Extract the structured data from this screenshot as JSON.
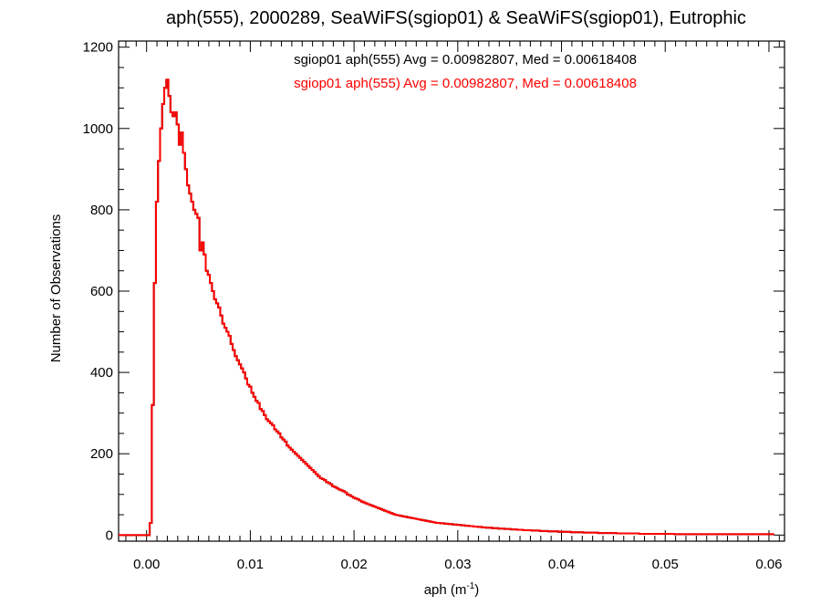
{
  "chart_data": {
    "type": "line",
    "title": "aph(555), 2000289, SeaWiFS(sgiop01) & SeaWiFS(sgiop01), Eutrophic",
    "xlabel": "aph (m",
    "xlabel_sup": "-1",
    "xlabel_end": ")",
    "ylabel": "Number of Observations",
    "xlim": [
      -0.0027,
      0.0615
    ],
    "ylim": [
      -15,
      1215
    ],
    "x_ticks": [
      0.0,
      0.01,
      0.02,
      0.03,
      0.04,
      0.05,
      0.06
    ],
    "x_tick_labels": [
      "0.00",
      "0.01",
      "0.02",
      "0.03",
      "0.04",
      "0.05",
      "0.06"
    ],
    "y_ticks": [
      0,
      200,
      400,
      600,
      800,
      1000,
      1200
    ],
    "y_tick_labels": [
      "0",
      "200",
      "400",
      "600",
      "800",
      "1000",
      "1200"
    ],
    "grid": false,
    "bin_width": 0.0002,
    "bin_start": -0.0027,
    "series": [
      {
        "name": "",
        "color": "#000000",
        "values": [
          0,
          0,
          0,
          0,
          0,
          0,
          0,
          0,
          0,
          0,
          0,
          0,
          0,
          0,
          0,
          30,
          320,
          620,
          820,
          920,
          1000,
          1060,
          1100,
          1120,
          1080,
          1040,
          1030,
          1040,
          1010,
          960,
          990,
          940,
          900,
          860,
          840,
          820,
          800,
          790,
          780,
          700,
          720,
          690,
          650,
          640,
          620,
          600,
          580,
          570,
          560,
          540,
          520,
          510,
          500,
          490,
          470,
          455,
          440,
          430,
          420,
          410,
          400,
          385,
          370,
          365,
          350,
          340,
          330,
          325,
          310,
          305,
          295,
          285,
          280,
          275,
          270,
          260,
          255,
          250,
          240,
          235,
          230,
          220,
          215,
          210,
          205,
          200,
          195,
          190,
          185,
          180,
          175,
          170,
          165,
          160,
          155,
          150,
          145,
          140,
          138,
          135,
          130,
          128,
          125,
          120,
          118,
          115,
          112,
          110,
          108,
          105,
          100,
          98,
          95,
          92,
          90,
          88,
          85,
          82,
          80,
          78,
          76,
          74,
          72,
          70,
          68,
          66,
          64,
          62,
          60,
          58,
          56,
          54,
          52,
          50,
          49,
          48,
          47,
          46,
          45,
          44,
          43,
          42,
          41,
          40,
          39,
          38,
          37,
          36,
          35,
          34,
          33,
          32,
          31,
          30,
          30,
          29,
          29,
          28,
          28,
          27,
          27,
          26,
          26,
          25,
          25,
          24,
          24,
          23,
          23,
          22,
          22,
          21,
          21,
          20,
          20,
          19,
          19,
          18,
          18,
          18,
          17,
          17,
          17,
          16,
          16,
          16,
          15,
          15,
          15,
          14,
          14,
          14,
          13,
          13,
          13,
          12,
          12,
          12,
          12,
          11,
          11,
          11,
          11,
          10,
          10,
          10,
          10,
          9,
          9,
          9,
          9,
          9,
          8,
          8,
          8,
          8,
          8,
          8,
          7,
          7,
          7,
          7,
          7,
          7,
          6,
          6,
          6,
          6,
          6,
          6,
          6,
          5,
          5,
          5,
          5,
          5,
          5,
          5,
          5,
          5,
          4,
          4,
          4,
          4,
          4,
          4,
          4,
          4,
          4,
          4,
          4,
          3,
          3,
          3,
          3,
          3,
          3,
          3,
          3,
          3,
          3,
          3,
          3,
          3,
          3,
          3,
          3,
          3,
          2,
          2,
          2,
          2,
          2,
          2,
          2,
          2,
          2,
          2,
          2,
          2,
          2,
          2,
          2,
          2,
          2,
          2,
          2,
          2,
          2,
          2,
          2,
          2,
          2,
          2,
          2,
          2,
          2,
          2,
          2,
          2,
          2,
          2,
          2,
          2,
          2,
          2,
          2,
          2,
          2,
          2,
          2,
          2,
          2,
          2,
          2,
          2
        ]
      },
      {
        "name": "",
        "color": "#ff0000",
        "values": [
          0,
          0,
          0,
          0,
          0,
          0,
          0,
          0,
          0,
          0,
          0,
          0,
          0,
          0,
          0,
          30,
          320,
          620,
          820,
          920,
          1000,
          1060,
          1100,
          1120,
          1080,
          1040,
          1030,
          1040,
          1010,
          960,
          990,
          940,
          900,
          860,
          840,
          820,
          800,
          790,
          780,
          700,
          720,
          690,
          650,
          640,
          620,
          600,
          580,
          570,
          560,
          540,
          520,
          510,
          500,
          490,
          470,
          455,
          440,
          430,
          420,
          410,
          400,
          385,
          370,
          365,
          350,
          340,
          330,
          325,
          310,
          305,
          295,
          285,
          280,
          275,
          270,
          260,
          255,
          250,
          240,
          235,
          230,
          220,
          215,
          210,
          205,
          200,
          195,
          190,
          185,
          180,
          175,
          170,
          165,
          160,
          155,
          150,
          145,
          140,
          138,
          135,
          130,
          128,
          125,
          120,
          118,
          115,
          112,
          110,
          108,
          105,
          100,
          98,
          95,
          92,
          90,
          88,
          85,
          82,
          80,
          78,
          76,
          74,
          72,
          70,
          68,
          66,
          64,
          62,
          60,
          58,
          56,
          54,
          52,
          50,
          49,
          48,
          47,
          46,
          45,
          44,
          43,
          42,
          41,
          40,
          39,
          38,
          37,
          36,
          35,
          34,
          33,
          32,
          31,
          30,
          30,
          29,
          29,
          28,
          28,
          27,
          27,
          26,
          26,
          25,
          25,
          24,
          24,
          23,
          23,
          22,
          22,
          21,
          21,
          20,
          20,
          19,
          19,
          18,
          18,
          18,
          17,
          17,
          17,
          16,
          16,
          16,
          15,
          15,
          15,
          14,
          14,
          14,
          13,
          13,
          13,
          12,
          12,
          12,
          12,
          11,
          11,
          11,
          11,
          10,
          10,
          10,
          10,
          9,
          9,
          9,
          9,
          9,
          8,
          8,
          8,
          8,
          8,
          8,
          7,
          7,
          7,
          7,
          7,
          7,
          6,
          6,
          6,
          6,
          6,
          6,
          6,
          5,
          5,
          5,
          5,
          5,
          5,
          5,
          5,
          5,
          4,
          4,
          4,
          4,
          4,
          4,
          4,
          4,
          4,
          4,
          4,
          3,
          3,
          3,
          3,
          3,
          3,
          3,
          3,
          3,
          3,
          3,
          3,
          3,
          3,
          3,
          3,
          3,
          2,
          2,
          2,
          2,
          2,
          2,
          2,
          2,
          2,
          2,
          2,
          2,
          2,
          2,
          2,
          2,
          2,
          2,
          2,
          2,
          2,
          2,
          2,
          2,
          2,
          2,
          2,
          2,
          2,
          2,
          2,
          2,
          2,
          2,
          2,
          2,
          2,
          2,
          2,
          2,
          2,
          2,
          2,
          2,
          2,
          2,
          2,
          2
        ]
      }
    ],
    "annotations": [
      {
        "text": "sgiop01 aph(555) Avg = 0.00982807, Med = 0.00618408",
        "color": "#000000"
      },
      {
        "text": "sgiop01 aph(555) Avg = 0.00982807, Med = 0.00618408",
        "color": "#ff0000"
      }
    ]
  }
}
